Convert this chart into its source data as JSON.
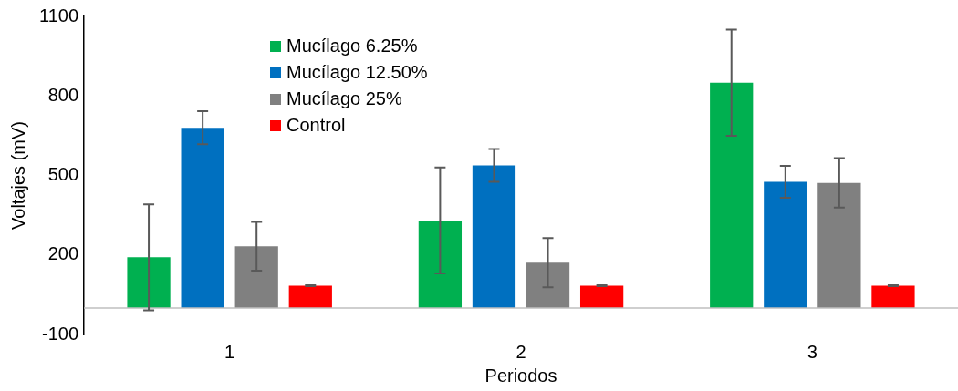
{
  "chart_data": {
    "type": "bar",
    "xlabel": "Periodos",
    "ylabel": "Voltajes (mV)",
    "categories": [
      "1",
      "2",
      "3"
    ],
    "ylim": [
      -100,
      1100
    ],
    "yticks": [
      -100,
      200,
      500,
      800,
      1100
    ],
    "grid": false,
    "legend": "top left",
    "series": [
      {
        "name": "Mucílago 6.25%",
        "color": "#00b050",
        "values": [
          191,
          330,
          850
        ],
        "errors": [
          200,
          200,
          200
        ]
      },
      {
        "name": "Mucílago 12.50%",
        "color": "#0070c0",
        "values": [
          680,
          538,
          476
        ],
        "errors": [
          62,
          62,
          60
        ]
      },
      {
        "name": "Mucílago 25%",
        "color": "#808080",
        "values": [
          233,
          171,
          472
        ],
        "errors": [
          92,
          93,
          93
        ]
      },
      {
        "name": "Control",
        "color": "#ff0000",
        "values": [
          84,
          84,
          84
        ],
        "errors": [
          2,
          2,
          2
        ]
      }
    ]
  }
}
